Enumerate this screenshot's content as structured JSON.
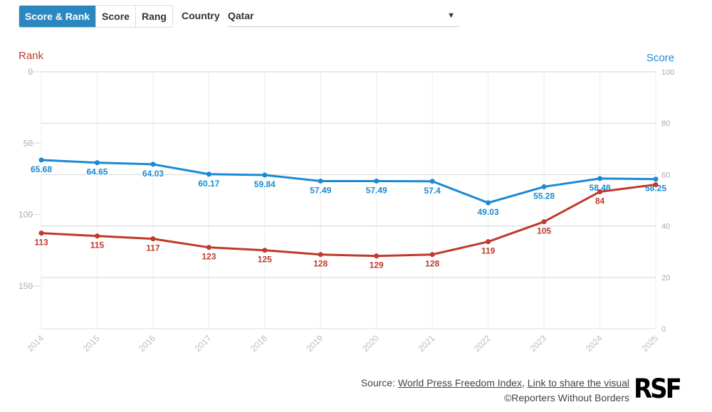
{
  "controls": {
    "tabs": [
      {
        "label": "Score & Rank",
        "active": true
      },
      {
        "label": "Score",
        "active": false
      },
      {
        "label": "Rang",
        "active": false
      }
    ],
    "country_label": "Country",
    "country_value": "Qatar"
  },
  "chart_data": {
    "type": "line",
    "x": [
      "2014",
      "2015",
      "2016",
      "2017",
      "2018",
      "2019",
      "2020",
      "2021",
      "2022",
      "2023",
      "2024",
      "2025"
    ],
    "left_axis": {
      "label": "Rank",
      "range": [
        0,
        180
      ],
      "ticks": [
        0,
        50,
        100,
        150
      ],
      "inverted": false
    },
    "right_axis": {
      "label": "Score",
      "range": [
        0,
        100
      ],
      "ticks": [
        0,
        20,
        40,
        60,
        80,
        100
      ]
    },
    "grid": true,
    "series": [
      {
        "name": "Score",
        "axis": "right",
        "color": "#1a8ad4",
        "values": [
          65.68,
          64.65,
          64.03,
          60.17,
          59.84,
          57.49,
          57.49,
          57.4,
          49.03,
          55.28,
          58.48,
          58.25
        ],
        "labels": [
          "65.68",
          "64.65",
          "64.03",
          "60.17",
          "59.84",
          "57.49",
          "57.49",
          "57.4",
          "49.03",
          "55.28",
          "58.48",
          "58.25"
        ]
      },
      {
        "name": "Rank",
        "axis": "left",
        "color": "#c0392b",
        "values": [
          113,
          115,
          117,
          123,
          125,
          128,
          129,
          128,
          119,
          105,
          84,
          79
        ],
        "labels": [
          "113",
          "115",
          "117",
          "123",
          "125",
          "128",
          "129",
          "128",
          "119",
          "105",
          "84",
          ""
        ]
      }
    ]
  },
  "footer": {
    "source_prefix": "Source: ",
    "source_link": "World Press Freedom Index",
    "separator": ", ",
    "share_link": "Link to share the visual",
    "copyright": "©Reporters Without Borders",
    "logo": "RSF"
  }
}
